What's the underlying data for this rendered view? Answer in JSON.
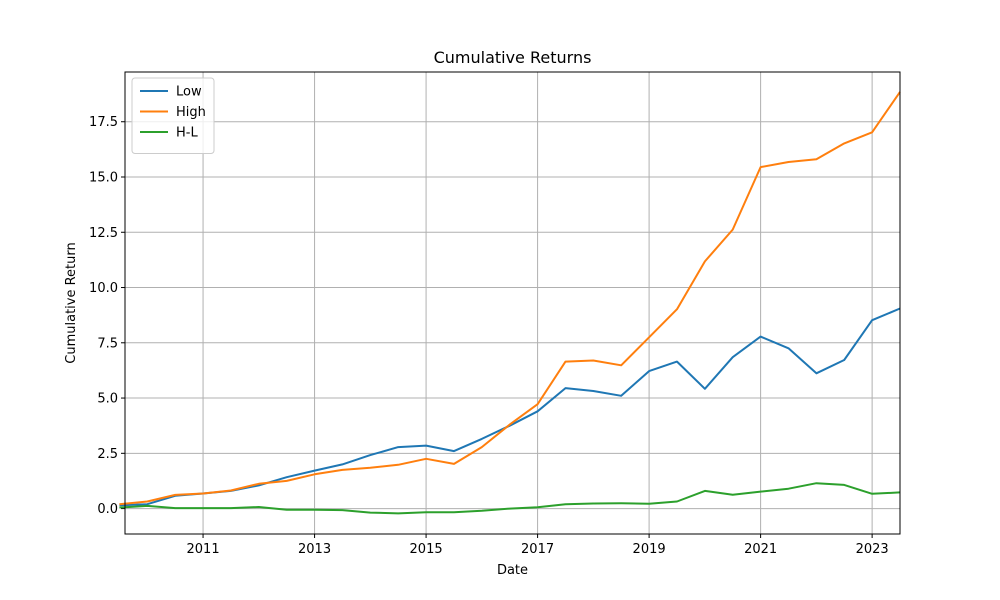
{
  "chart_data": {
    "type": "line",
    "title": "Cumulative Returns",
    "xlabel": "Date",
    "ylabel": "Cumulative Return",
    "xlim": [
      2009.6,
      2023.5
    ],
    "ylim": [
      -1.15,
      19.75
    ],
    "x_ticks": [
      2011,
      2013,
      2015,
      2017,
      2019,
      2021,
      2023
    ],
    "x_tick_labels": [
      "2011",
      "2013",
      "2015",
      "2017",
      "2019",
      "2021",
      "2023"
    ],
    "y_ticks": [
      0.0,
      2.5,
      5.0,
      7.5,
      10.0,
      12.5,
      15.0,
      17.5
    ],
    "y_tick_labels": [
      "0.0",
      "2.5",
      "5.0",
      "7.5",
      "10.0",
      "12.5",
      "15.0",
      "17.5"
    ],
    "grid": true,
    "legend_position": "top-left",
    "x": [
      "2009-07",
      "2010-01",
      "2010-07",
      "2011-01",
      "2011-07",
      "2012-01",
      "2012-07",
      "2013-01",
      "2013-07",
      "2014-01",
      "2014-07",
      "2015-01",
      "2015-07",
      "2016-01",
      "2016-07",
      "2017-01",
      "2017-07",
      "2018-01",
      "2018-07",
      "2019-01",
      "2019-07",
      "2020-01",
      "2020-07",
      "2021-01",
      "2021-07",
      "2022-01",
      "2022-07",
      "2023-01",
      "2023-07"
    ],
    "series": [
      {
        "name": "Low",
        "color": "#1f77b4",
        "values": [
          0.15,
          0.2,
          0.58,
          0.68,
          0.8,
          1.05,
          1.42,
          1.72,
          2.0,
          2.42,
          2.78,
          2.85,
          2.6,
          3.15,
          3.75,
          4.4,
          5.45,
          5.32,
          5.1,
          6.22,
          6.65,
          5.42,
          6.85,
          7.78,
          7.25,
          6.12,
          6.72,
          8.52,
          9.05
        ]
      },
      {
        "name": "High",
        "color": "#ff7f0e",
        "values": [
          0.2,
          0.32,
          0.62,
          0.68,
          0.82,
          1.12,
          1.25,
          1.55,
          1.75,
          1.85,
          1.98,
          2.25,
          2.02,
          2.78,
          3.8,
          4.72,
          6.65,
          6.7,
          6.48,
          7.75,
          9.02,
          11.18,
          12.62,
          15.45,
          15.68,
          15.8,
          16.52,
          17.02,
          18.85
        ]
      },
      {
        "name": "H-L",
        "color": "#2ca02c",
        "values": [
          0.05,
          0.12,
          0.02,
          0.02,
          0.02,
          0.07,
          -0.05,
          -0.05,
          -0.07,
          -0.18,
          -0.22,
          -0.17,
          -0.17,
          -0.1,
          0.0,
          0.06,
          0.2,
          0.23,
          0.24,
          0.22,
          0.32,
          0.8,
          0.63,
          0.77,
          0.9,
          1.15,
          1.07,
          0.67,
          0.73
        ]
      }
    ]
  }
}
